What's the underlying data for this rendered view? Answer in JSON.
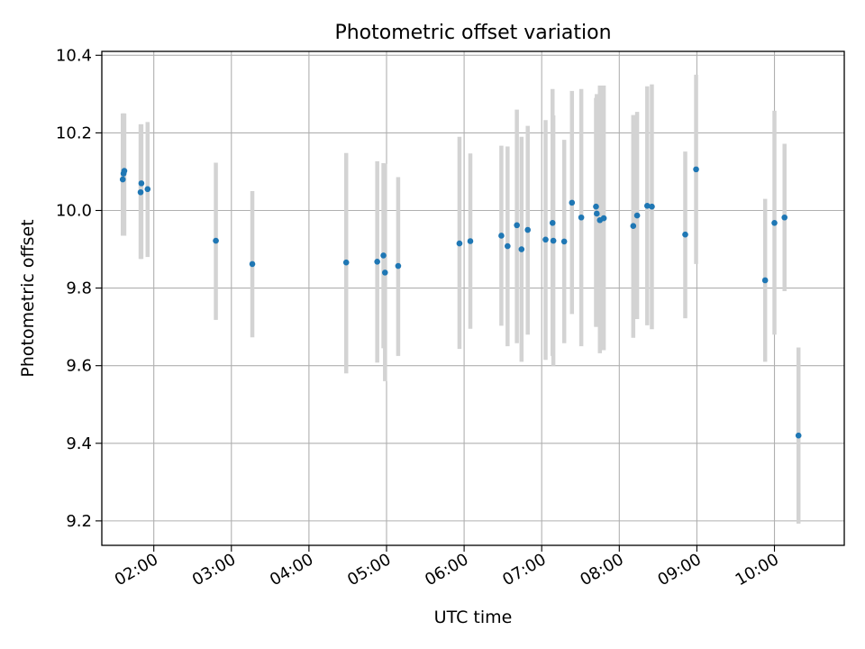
{
  "chart_data": {
    "type": "scatter",
    "title": "Photometric offset variation",
    "xlabel": "UTC time",
    "ylabel": "Photometric offset",
    "x_axis": {
      "unit": "hours",
      "range": [
        1.33,
        10.9
      ],
      "ticks": [
        {
          "value": 2,
          "label": "02:00"
        },
        {
          "value": 3,
          "label": "03:00"
        },
        {
          "value": 4,
          "label": "04:00"
        },
        {
          "value": 5,
          "label": "05:00"
        },
        {
          "value": 6,
          "label": "06:00"
        },
        {
          "value": 7,
          "label": "07:00"
        },
        {
          "value": 8,
          "label": "08:00"
        },
        {
          "value": 9,
          "label": "09:00"
        },
        {
          "value": 10,
          "label": "10:00"
        }
      ]
    },
    "y_axis": {
      "range": [
        9.137,
        10.41
      ],
      "ticks": [
        {
          "value": 9.2,
          "label": "9.2"
        },
        {
          "value": 9.4,
          "label": "9.4"
        },
        {
          "value": 9.6,
          "label": "9.6"
        },
        {
          "value": 9.8,
          "label": "9.8"
        },
        {
          "value": 10.0,
          "label": "10.0"
        },
        {
          "value": 10.2,
          "label": "10.2"
        },
        {
          "value": 10.4,
          "label": "10.4"
        }
      ]
    },
    "grid": true,
    "colors": {
      "point": "#1f77b4",
      "errorbar": "#d3d3d3",
      "grid": "#b0b0b0"
    },
    "series": [
      {
        "points": [
          {
            "x": 1.6,
            "y": 10.08,
            "lo": 9.935,
            "hi": 10.25
          },
          {
            "x": 1.61,
            "y": 10.095,
            "lo": 9.935,
            "hi": 10.25
          },
          {
            "x": 1.62,
            "y": 10.102,
            "lo": 9.935,
            "hi": 10.25
          },
          {
            "x": 1.83,
            "y": 10.047,
            "lo": 9.875,
            "hi": 10.222
          },
          {
            "x": 1.84,
            "y": 10.07,
            "lo": 9.875,
            "hi": 10.222
          },
          {
            "x": 1.92,
            "y": 10.055,
            "lo": 9.88,
            "hi": 10.228
          },
          {
            "x": 2.8,
            "y": 9.922,
            "lo": 9.718,
            "hi": 10.123
          },
          {
            "x": 3.27,
            "y": 9.862,
            "lo": 9.673,
            "hi": 10.05
          },
          {
            "x": 4.48,
            "y": 9.866,
            "lo": 9.58,
            "hi": 10.148
          },
          {
            "x": 4.88,
            "y": 9.868,
            "lo": 9.608,
            "hi": 10.127
          },
          {
            "x": 4.96,
            "y": 9.884,
            "lo": 9.645,
            "hi": 10.122
          },
          {
            "x": 4.98,
            "y": 9.84,
            "lo": 9.56,
            "hi": 10.12
          },
          {
            "x": 5.15,
            "y": 9.857,
            "lo": 9.625,
            "hi": 10.086
          },
          {
            "x": 5.94,
            "y": 9.915,
            "lo": 9.643,
            "hi": 10.19
          },
          {
            "x": 6.08,
            "y": 9.921,
            "lo": 9.695,
            "hi": 10.147
          },
          {
            "x": 6.48,
            "y": 9.935,
            "lo": 9.703,
            "hi": 10.167
          },
          {
            "x": 6.56,
            "y": 9.908,
            "lo": 9.65,
            "hi": 10.165
          },
          {
            "x": 6.68,
            "y": 9.962,
            "lo": 9.658,
            "hi": 10.26
          },
          {
            "x": 6.74,
            "y": 9.9,
            "lo": 9.61,
            "hi": 10.19
          },
          {
            "x": 6.82,
            "y": 9.95,
            "lo": 9.68,
            "hi": 10.218
          },
          {
            "x": 7.05,
            "y": 9.925,
            "lo": 9.615,
            "hi": 10.233
          },
          {
            "x": 7.14,
            "y": 9.968,
            "lo": 9.625,
            "hi": 10.313
          },
          {
            "x": 7.15,
            "y": 9.922,
            "lo": 9.6,
            "hi": 10.245
          },
          {
            "x": 7.29,
            "y": 9.92,
            "lo": 9.658,
            "hi": 10.182
          },
          {
            "x": 7.39,
            "y": 10.02,
            "lo": 9.733,
            "hi": 10.308
          },
          {
            "x": 7.51,
            "y": 9.982,
            "lo": 9.65,
            "hi": 10.313
          },
          {
            "x": 7.7,
            "y": 10.01,
            "lo": 9.7,
            "hi": 10.29
          },
          {
            "x": 7.71,
            "y": 9.992,
            "lo": 9.7,
            "hi": 10.3
          },
          {
            "x": 7.75,
            "y": 9.975,
            "lo": 9.632,
            "hi": 10.322
          },
          {
            "x": 7.8,
            "y": 9.98,
            "lo": 9.64,
            "hi": 10.322
          },
          {
            "x": 8.18,
            "y": 9.96,
            "lo": 9.672,
            "hi": 10.246
          },
          {
            "x": 8.23,
            "y": 9.987,
            "lo": 9.72,
            "hi": 10.254
          },
          {
            "x": 8.36,
            "y": 10.012,
            "lo": 9.704,
            "hi": 10.32
          },
          {
            "x": 8.42,
            "y": 10.01,
            "lo": 9.694,
            "hi": 10.325
          },
          {
            "x": 8.85,
            "y": 9.938,
            "lo": 9.722,
            "hi": 10.152
          },
          {
            "x": 8.99,
            "y": 10.106,
            "lo": 9.862,
            "hi": 10.35
          },
          {
            "x": 9.88,
            "y": 9.82,
            "lo": 9.61,
            "hi": 10.03
          },
          {
            "x": 10.0,
            "y": 9.968,
            "lo": 9.68,
            "hi": 10.257
          },
          {
            "x": 10.13,
            "y": 9.982,
            "lo": 9.792,
            "hi": 10.172
          },
          {
            "x": 10.31,
            "y": 9.42,
            "lo": 9.193,
            "hi": 9.647
          }
        ]
      }
    ]
  }
}
